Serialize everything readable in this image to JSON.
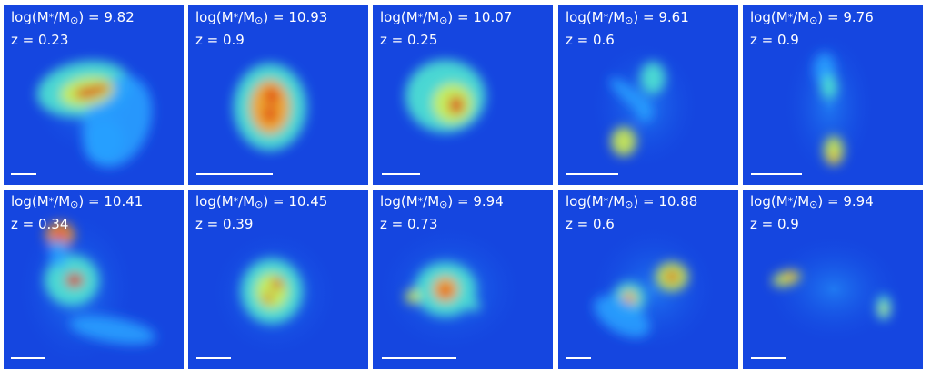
{
  "figure": {
    "mass_prefix": "log(M",
    "mass_star": "*",
    "mass_mid": "/M",
    "mass_sun": "⊙",
    "mass_suffix": ") = ",
    "z_prefix": "z = ",
    "colormap": [
      "#0a28c8",
      "#1450e6",
      "#28a0ff",
      "#50e6d2",
      "#d2f050",
      "#ffa01e",
      "#dc1e0a"
    ],
    "background_color": "#1546e0"
  },
  "panels": [
    {
      "mass": "9.82",
      "z": "0.23"
    },
    {
      "mass": "10.93",
      "z": "0.9"
    },
    {
      "mass": "10.07",
      "z": "0.25"
    },
    {
      "mass": "9.61",
      "z": "0.6"
    },
    {
      "mass": "9.76",
      "z": "0.9"
    },
    {
      "mass": "10.41",
      "z": "0.34"
    },
    {
      "mass": "10.45",
      "z": "0.39"
    },
    {
      "mass": "9.94",
      "z": "0.73"
    },
    {
      "mass": "10.88",
      "z": "0.6"
    },
    {
      "mass": "9.94",
      "z": "0.9"
    }
  ]
}
